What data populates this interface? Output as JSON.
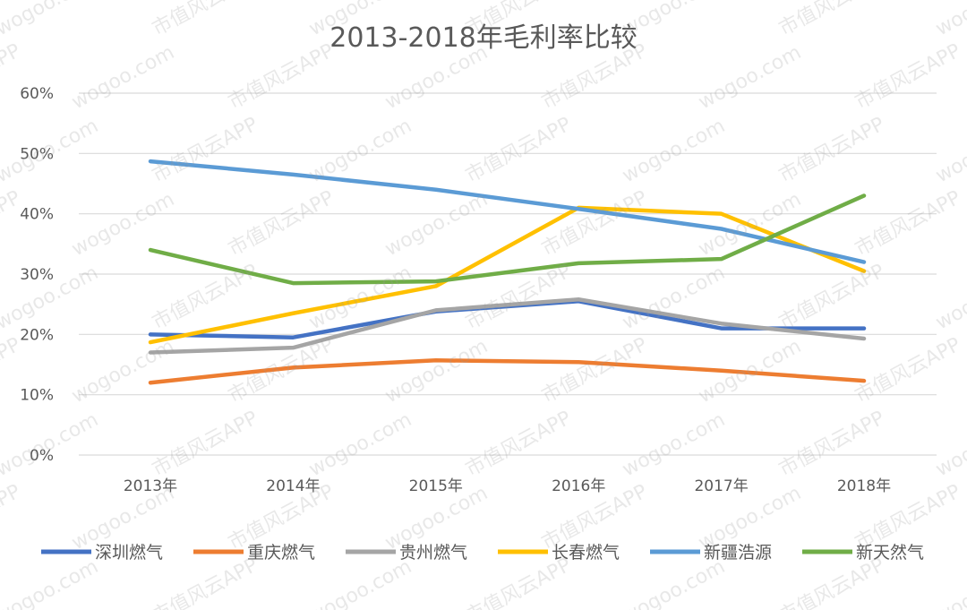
{
  "chart_data": {
    "type": "line",
    "title": "2013-2018年毛利率比较",
    "categories": [
      "2013年",
      "2014年",
      "2015年",
      "2016年",
      "2017年",
      "2018年"
    ],
    "ylim": [
      0,
      60
    ],
    "yticks": [
      0,
      10,
      20,
      30,
      40,
      50,
      60
    ],
    "ytick_labels": [
      "0%",
      "10%",
      "20%",
      "30%",
      "40%",
      "50%",
      "60%"
    ],
    "grid": true,
    "legend_position": "bottom",
    "series": [
      {
        "name": "深圳燃气",
        "color": "#4472c4",
        "values": [
          20.0,
          19.5,
          23.8,
          25.5,
          21.0,
          21.0
        ]
      },
      {
        "name": "重庆燃气",
        "color": "#ed7d31",
        "values": [
          12.0,
          14.5,
          15.7,
          15.4,
          14.0,
          12.3
        ]
      },
      {
        "name": "贵州燃气",
        "color": "#a5a5a5",
        "values": [
          17.0,
          17.8,
          24.0,
          25.8,
          21.8,
          19.3
        ]
      },
      {
        "name": "长春燃气",
        "color": "#ffc000",
        "values": [
          18.7,
          23.5,
          28.0,
          41.0,
          40.0,
          30.5
        ]
      },
      {
        "name": "新疆浩源",
        "color": "#5b9bd5",
        "values": [
          48.7,
          46.5,
          44.0,
          40.8,
          37.5,
          32.0
        ]
      },
      {
        "name": "新天然气",
        "color": "#70ad47",
        "values": [
          34.0,
          28.5,
          28.8,
          31.8,
          32.5,
          43.0
        ]
      }
    ]
  },
  "watermark": {
    "texts": [
      "市值风云APP",
      "wogoo.com"
    ]
  }
}
